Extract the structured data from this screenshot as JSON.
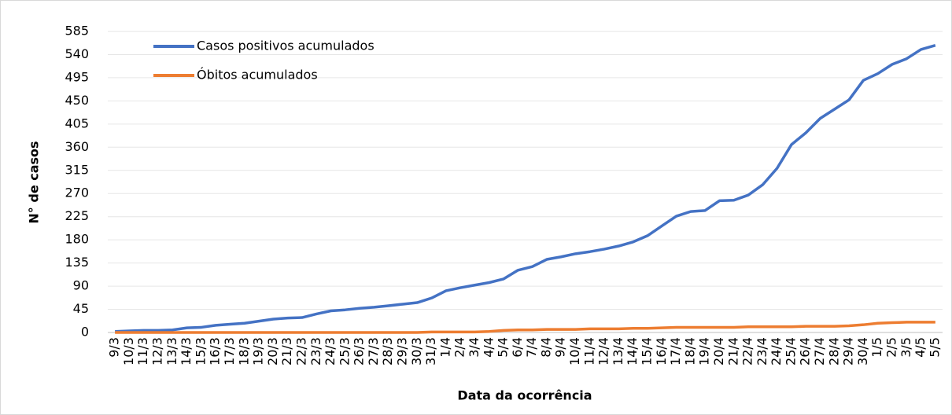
{
  "chart_data": {
    "type": "line",
    "x_label": "Data da ocorrência",
    "y_label": "N° de casos",
    "categories": [
      "9/3",
      "10/3",
      "11/3",
      "12/3",
      "13/3",
      "14/3",
      "15/3",
      "16/3",
      "17/3",
      "18/3",
      "19/3",
      "20/3",
      "21/3",
      "22/3",
      "23/3",
      "24/3",
      "25/3",
      "26/3",
      "27/3",
      "28/3",
      "29/3",
      "30/3",
      "31/3",
      "1/4",
      "2/4",
      "3/4",
      "4/4",
      "5/4",
      "6/4",
      "7/4",
      "8/4",
      "9/4",
      "10/4",
      "11/4",
      "12/4",
      "13/4",
      "14/4",
      "15/4",
      "16/4",
      "17/4",
      "18/4",
      "19/4",
      "20/4",
      "21/4",
      "22/4",
      "23/4",
      "24/4",
      "25/4",
      "26/4",
      "27/4",
      "28/4",
      "29/4",
      "30/4",
      "1/5",
      "2/5",
      "3/5",
      "4/5",
      "5/5"
    ],
    "series": [
      {
        "name": "Casos positivos acumulados",
        "color": "#4472c4",
        "values": [
          2,
          3,
          4,
          4,
          5,
          9,
          10,
          14,
          16,
          18,
          22,
          26,
          28,
          29,
          36,
          42,
          44,
          47,
          49,
          52,
          55,
          58,
          67,
          81,
          87,
          92,
          97,
          104,
          121,
          128,
          142,
          147,
          153,
          157,
          162,
          168,
          176,
          188,
          207,
          226,
          235,
          237,
          256,
          257,
          267,
          287,
          319,
          365,
          388,
          416,
          434,
          452,
          490,
          503,
          521,
          532,
          550,
          558
        ]
      },
      {
        "name": "Óbitos acumulados",
        "color": "#ed7d31",
        "values": [
          0,
          0,
          0,
          0,
          0,
          0,
          0,
          0,
          0,
          0,
          0,
          0,
          0,
          0,
          0,
          0,
          0,
          0,
          0,
          0,
          0,
          0,
          1,
          1,
          1,
          1,
          2,
          4,
          5,
          5,
          6,
          6,
          6,
          7,
          7,
          7,
          8,
          8,
          9,
          10,
          10,
          10,
          10,
          10,
          11,
          11,
          11,
          11,
          12,
          12,
          12,
          13,
          15,
          18,
          19,
          20,
          20,
          20
        ]
      }
    ],
    "ylim": [
      0,
      585
    ],
    "yticks": [
      0,
      45,
      90,
      135,
      180,
      225,
      270,
      315,
      360,
      405,
      450,
      495,
      540,
      585
    ],
    "grid": true,
    "legend": "top-left"
  }
}
